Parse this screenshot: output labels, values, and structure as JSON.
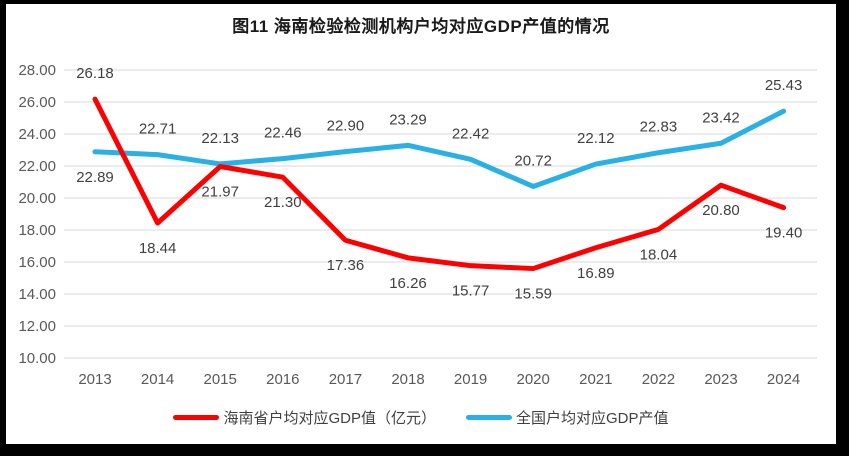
{
  "title": "图11 海南检验检测机构户均对应GDP产值的情况",
  "colors": {
    "hainan_red": "#FE0000",
    "national_blue": "#29B0E5",
    "gridline": "#D9D9D9",
    "axis_text": "#595959",
    "data_label_text": "#404040",
    "frame": "#000000",
    "background": "#FFFFFF"
  },
  "chart_data": {
    "type": "line",
    "categories": [
      "2013",
      "2014",
      "2015",
      "2016",
      "2017",
      "2018",
      "2019",
      "2020",
      "2021",
      "2022",
      "2023",
      "2024"
    ],
    "series": [
      {
        "key": "hainan",
        "name": "海南省户均对应GDP值（亿元）",
        "color": "#FE0000",
        "values": [
          26.18,
          18.44,
          21.97,
          21.3,
          17.36,
          16.26,
          15.77,
          15.59,
          16.89,
          18.04,
          20.8,
          19.4
        ],
        "label_positions": [
          "above",
          "below",
          "below",
          "below",
          "below",
          "below",
          "below",
          "below",
          "below",
          "below",
          "below",
          "below"
        ]
      },
      {
        "key": "national",
        "name": "全国户均对应GDP产值",
        "color": "#29B0E5",
        "values": [
          22.89,
          22.71,
          22.13,
          22.46,
          22.9,
          23.29,
          22.42,
          20.72,
          22.12,
          22.83,
          23.42,
          25.43
        ],
        "label_positions": [
          "below",
          "above",
          "above",
          "above",
          "above",
          "above",
          "above",
          "above",
          "above",
          "above",
          "above",
          "above"
        ]
      }
    ],
    "yticks": [
      "28.00",
      "26.00",
      "24.00",
      "22.00",
      "20.00",
      "18.00",
      "16.00",
      "14.00",
      "12.00",
      "10.00"
    ],
    "ylim": [
      10,
      28
    ],
    "ytick_step": 2,
    "grid": true,
    "data_labels": true,
    "legend_position": "bottom",
    "xlabel": "",
    "ylabel": ""
  }
}
